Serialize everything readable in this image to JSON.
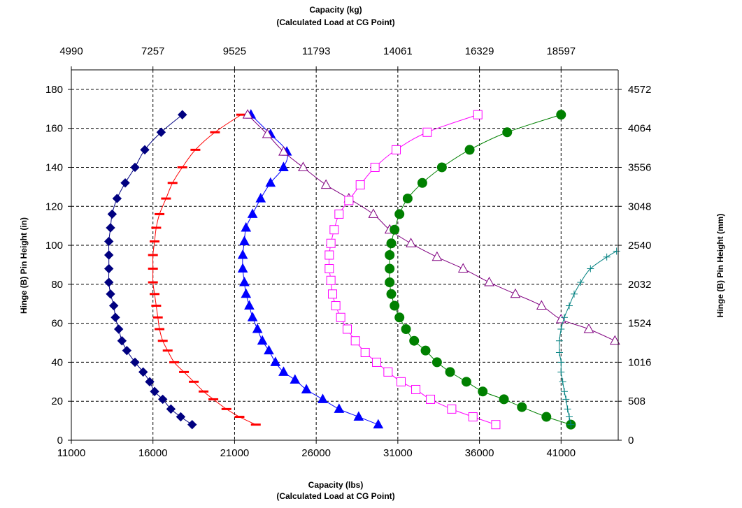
{
  "chart_data": {
    "type": "scatter",
    "title": "",
    "top_axis": {
      "title_line1": "Capacity (kg)",
      "title_line2": "(Calculated Load at CG Point)",
      "ticks": [
        {
          "value": 11000,
          "label": "4990"
        },
        {
          "value": 16000,
          "label": "7257"
        },
        {
          "value": 21000,
          "label": "9525"
        },
        {
          "value": 26000,
          "label": "11793"
        },
        {
          "value": 31000,
          "label": "14061"
        },
        {
          "value": 36000,
          "label": "16329"
        },
        {
          "value": 41000,
          "label": "18597"
        }
      ]
    },
    "bottom_axis": {
      "title_line1": "Capacity (lbs)",
      "title_line2": "(Calculated Load at CG Point)",
      "ticks": [
        11000,
        16000,
        21000,
        26000,
        31000,
        36000,
        41000
      ],
      "xlim": [
        11000,
        44500
      ]
    },
    "left_axis": {
      "title": "Hinge (B) Pin Height (in)",
      "ticks": [
        0,
        20,
        40,
        60,
        80,
        100,
        120,
        140,
        160,
        180
      ],
      "ylim": [
        0,
        190
      ]
    },
    "right_axis": {
      "title": "Hinge (B) Pin Height (mm)",
      "ticks": [
        {
          "value": 0,
          "label": "0"
        },
        {
          "value": 20,
          "label": "508"
        },
        {
          "value": 40,
          "label": "1016"
        },
        {
          "value": 60,
          "label": "1524"
        },
        {
          "value": 80,
          "label": "2032"
        },
        {
          "value": 100,
          "label": "2540"
        },
        {
          "value": 120,
          "label": "3048"
        },
        {
          "value": 140,
          "label": "3556"
        },
        {
          "value": 160,
          "label": "4064"
        },
        {
          "value": 180,
          "label": "4572"
        }
      ]
    },
    "grid": true,
    "legend": "none",
    "series": [
      {
        "marker": "diamond",
        "color": "#000080",
        "filled": true,
        "points": [
          [
            18400,
            8
          ],
          [
            17700,
            12
          ],
          [
            17100,
            16
          ],
          [
            16600,
            21
          ],
          [
            16100,
            25
          ],
          [
            15800,
            30
          ],
          [
            15400,
            35
          ],
          [
            14900,
            40
          ],
          [
            14400,
            46
          ],
          [
            14100,
            51
          ],
          [
            13900,
            57
          ],
          [
            13700,
            63
          ],
          [
            13600,
            69
          ],
          [
            13400,
            75
          ],
          [
            13300,
            81
          ],
          [
            13300,
            88
          ],
          [
            13300,
            95
          ],
          [
            13300,
            102
          ],
          [
            13400,
            109
          ],
          [
            13500,
            116
          ],
          [
            13800,
            124
          ],
          [
            14300,
            132
          ],
          [
            14900,
            140
          ],
          [
            15500,
            149
          ],
          [
            16500,
            158
          ],
          [
            17800,
            167
          ]
        ]
      },
      {
        "marker": "dash",
        "color": "#ff0000",
        "filled": true,
        "points": [
          [
            22300,
            8
          ],
          [
            21300,
            12
          ],
          [
            20500,
            16
          ],
          [
            19700,
            21
          ],
          [
            19100,
            25
          ],
          [
            18500,
            30
          ],
          [
            17900,
            35
          ],
          [
            17300,
            40
          ],
          [
            16900,
            46
          ],
          [
            16600,
            51
          ],
          [
            16400,
            57
          ],
          [
            16300,
            63
          ],
          [
            16200,
            69
          ],
          [
            16100,
            75
          ],
          [
            16000,
            81
          ],
          [
            16000,
            88
          ],
          [
            16000,
            95
          ],
          [
            16100,
            102
          ],
          [
            16200,
            109
          ],
          [
            16400,
            116
          ],
          [
            16800,
            124
          ],
          [
            17200,
            132
          ],
          [
            17800,
            140
          ],
          [
            18600,
            149
          ],
          [
            19800,
            158
          ],
          [
            21400,
            167
          ]
        ]
      },
      {
        "marker": "triangle",
        "color": "#0000ff",
        "filled": true,
        "points": [
          [
            29800,
            8
          ],
          [
            28600,
            12
          ],
          [
            27400,
            16
          ],
          [
            26400,
            21
          ],
          [
            25400,
            26
          ],
          [
            24700,
            31
          ],
          [
            24000,
            35
          ],
          [
            23500,
            40
          ],
          [
            23100,
            46
          ],
          [
            22700,
            51
          ],
          [
            22400,
            57
          ],
          [
            22100,
            63
          ],
          [
            21900,
            69
          ],
          [
            21700,
            75
          ],
          [
            21600,
            81
          ],
          [
            21500,
            88
          ],
          [
            21500,
            95
          ],
          [
            21600,
            102
          ],
          [
            21700,
            109
          ],
          [
            22100,
            116
          ],
          [
            22600,
            124
          ],
          [
            23200,
            132
          ],
          [
            24000,
            140
          ],
          [
            24200,
            148
          ],
          [
            23200,
            157
          ],
          [
            22000,
            167
          ]
        ]
      },
      {
        "marker": "triangle",
        "color": "#800080",
        "filled": false,
        "points": [
          [
            21800,
            167
          ],
          [
            23000,
            157
          ],
          [
            24000,
            148
          ],
          [
            25200,
            140
          ],
          [
            26600,
            131
          ],
          [
            28000,
            124
          ],
          [
            29500,
            116
          ],
          [
            30500,
            108
          ],
          [
            31800,
            101
          ],
          [
            33400,
            94
          ],
          [
            35000,
            88
          ],
          [
            36600,
            81
          ],
          [
            38200,
            75
          ],
          [
            39800,
            69
          ],
          [
            41000,
            62
          ],
          [
            42700,
            57
          ],
          [
            44300,
            51
          ]
        ]
      },
      {
        "marker": "square",
        "color": "#ff00ff",
        "filled": false,
        "points": [
          [
            37000,
            8
          ],
          [
            35600,
            12
          ],
          [
            34300,
            16
          ],
          [
            33000,
            21
          ],
          [
            32100,
            26
          ],
          [
            31200,
            30
          ],
          [
            30400,
            35
          ],
          [
            29700,
            40
          ],
          [
            29000,
            45
          ],
          [
            28400,
            51
          ],
          [
            27900,
            57
          ],
          [
            27500,
            63
          ],
          [
            27200,
            69
          ],
          [
            27000,
            75
          ],
          [
            26900,
            82
          ],
          [
            26800,
            88
          ],
          [
            26800,
            95
          ],
          [
            26900,
            101
          ],
          [
            27100,
            108
          ],
          [
            27400,
            116
          ],
          [
            28000,
            123
          ],
          [
            28700,
            131
          ],
          [
            29600,
            140
          ],
          [
            30900,
            149
          ],
          [
            32800,
            158
          ],
          [
            35900,
            167
          ]
        ]
      },
      {
        "marker": "circle",
        "color": "#008000",
        "filled": true,
        "points": [
          [
            41600,
            8
          ],
          [
            40100,
            12
          ],
          [
            38600,
            17
          ],
          [
            37500,
            21
          ],
          [
            36200,
            25
          ],
          [
            35200,
            30
          ],
          [
            34200,
            35
          ],
          [
            33400,
            40
          ],
          [
            32700,
            46
          ],
          [
            32000,
            51
          ],
          [
            31500,
            57
          ],
          [
            31100,
            63
          ],
          [
            30800,
            69
          ],
          [
            30600,
            75
          ],
          [
            30500,
            81
          ],
          [
            30500,
            88
          ],
          [
            30500,
            95
          ],
          [
            30600,
            101
          ],
          [
            30800,
            108
          ],
          [
            31100,
            116
          ],
          [
            31600,
            124
          ],
          [
            32500,
            132
          ],
          [
            33700,
            140
          ],
          [
            35400,
            149
          ],
          [
            37700,
            158
          ],
          [
            41000,
            167
          ]
        ]
      },
      {
        "marker": "plus",
        "color": "#008080",
        "filled": true,
        "points": [
          [
            41600,
            8
          ],
          [
            41500,
            12
          ],
          [
            41400,
            16
          ],
          [
            41300,
            21
          ],
          [
            41200,
            25
          ],
          [
            41100,
            30
          ],
          [
            41000,
            35
          ],
          [
            41000,
            40
          ],
          [
            40900,
            45
          ],
          [
            40900,
            51
          ],
          [
            41000,
            57
          ],
          [
            41200,
            63
          ],
          [
            41500,
            69
          ],
          [
            41800,
            75
          ],
          [
            42200,
            81
          ],
          [
            42800,
            88
          ],
          [
            43800,
            94
          ],
          [
            44400,
            97
          ]
        ]
      }
    ]
  }
}
